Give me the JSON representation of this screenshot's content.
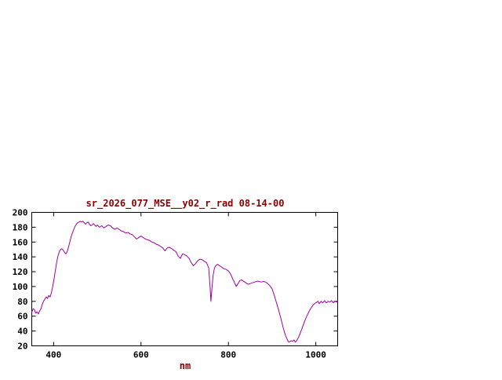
{
  "window": {
    "background": "#ffffff"
  },
  "colors": {
    "title": "#8b0000",
    "axis_label": "#8b0000",
    "tick_label": "#000000",
    "border": "#000000",
    "line": "#a000a0"
  },
  "chart_data": {
    "type": "line",
    "title": "sr_2026_077_MSE__y02_r_rad 08-14-00",
    "xlabel": "nm",
    "ylabel": "",
    "xlim": [
      350,
      1050
    ],
    "ylim": [
      20,
      200
    ],
    "x_ticks": [
      400,
      600,
      800,
      1000
    ],
    "y_ticks": [
      20,
      40,
      60,
      80,
      100,
      120,
      140,
      160,
      180,
      200
    ],
    "grid": false,
    "legend": "none",
    "series": [
      {
        "name": "sr_2026_077_MSE__y02_r_rad",
        "x": [
          350,
          353,
          356,
          359,
          362,
          365,
          368,
          371,
          374,
          377,
          380,
          383,
          386,
          389,
          392,
          395,
          398,
          401,
          404,
          407,
          410,
          413,
          416,
          419,
          422,
          425,
          428,
          431,
          434,
          437,
          440,
          443,
          446,
          449,
          452,
          455,
          458,
          461,
          464,
          467,
          470,
          473,
          476,
          479,
          482,
          485,
          488,
          491,
          494,
          497,
          500,
          505,
          510,
          515,
          520,
          525,
          530,
          535,
          540,
          545,
          550,
          555,
          560,
          565,
          570,
          575,
          580,
          585,
          590,
          595,
          600,
          605,
          610,
          615,
          620,
          625,
          630,
          635,
          640,
          645,
          650,
          655,
          660,
          665,
          670,
          675,
          680,
          685,
          690,
          695,
          700,
          705,
          710,
          715,
          720,
          725,
          730,
          735,
          740,
          745,
          750,
          755,
          758,
          760,
          762,
          765,
          768,
          771,
          775,
          780,
          785,
          790,
          795,
          800,
          805,
          810,
          815,
          818,
          822,
          826,
          830,
          835,
          840,
          845,
          850,
          855,
          860,
          865,
          870,
          875,
          880,
          885,
          890,
          895,
          900,
          905,
          910,
          915,
          920,
          925,
          930,
          935,
          938,
          941,
          944,
          947,
          950,
          953,
          956,
          960,
          965,
          970,
          975,
          980,
          985,
          990,
          995,
          1000,
          1005,
          1008,
          1012,
          1016,
          1020,
          1024,
          1028,
          1032,
          1036,
          1040,
          1044,
          1048,
          1050
        ],
        "y": [
          65,
          70,
          69,
          64,
          66,
          63,
          67,
          70,
          76,
          80,
          83,
          86,
          84,
          88,
          86,
          92,
          100,
          110,
          122,
          133,
          141,
          147,
          150,
          151,
          149,
          146,
          144,
          147,
          153,
          160,
          167,
          172,
          177,
          181,
          184,
          186,
          187,
          188,
          187,
          188,
          186,
          184,
          186,
          187,
          184,
          182,
          183,
          185,
          183,
          181,
          183,
          180,
          182,
          179,
          181,
          183,
          182,
          179,
          177,
          179,
          177,
          175,
          174,
          172,
          173,
          171,
          170,
          167,
          164,
          166,
          168,
          166,
          164,
          163,
          162,
          160,
          159,
          157,
          156,
          154,
          152,
          148,
          152,
          153,
          151,
          149,
          147,
          141,
          138,
          144,
          143,
          141,
          138,
          132,
          128,
          131,
          135,
          137,
          136,
          134,
          132,
          125,
          100,
          80,
          95,
          115,
          125,
          128,
          130,
          128,
          126,
          124,
          123,
          121,
          117,
          110,
          104,
          100,
          104,
          108,
          109,
          107,
          105,
          103,
          104,
          105,
          106,
          107,
          107,
          106,
          107,
          106,
          104,
          101,
          97,
          88,
          78,
          68,
          57,
          45,
          35,
          28,
          25,
          26,
          27,
          26,
          28,
          25,
          27,
          31,
          38,
          46,
          54,
          61,
          67,
          72,
          76,
          78,
          80,
          77,
          80,
          78,
          81,
          78,
          80,
          79,
          81,
          78,
          80,
          79,
          80
        ]
      }
    ]
  }
}
